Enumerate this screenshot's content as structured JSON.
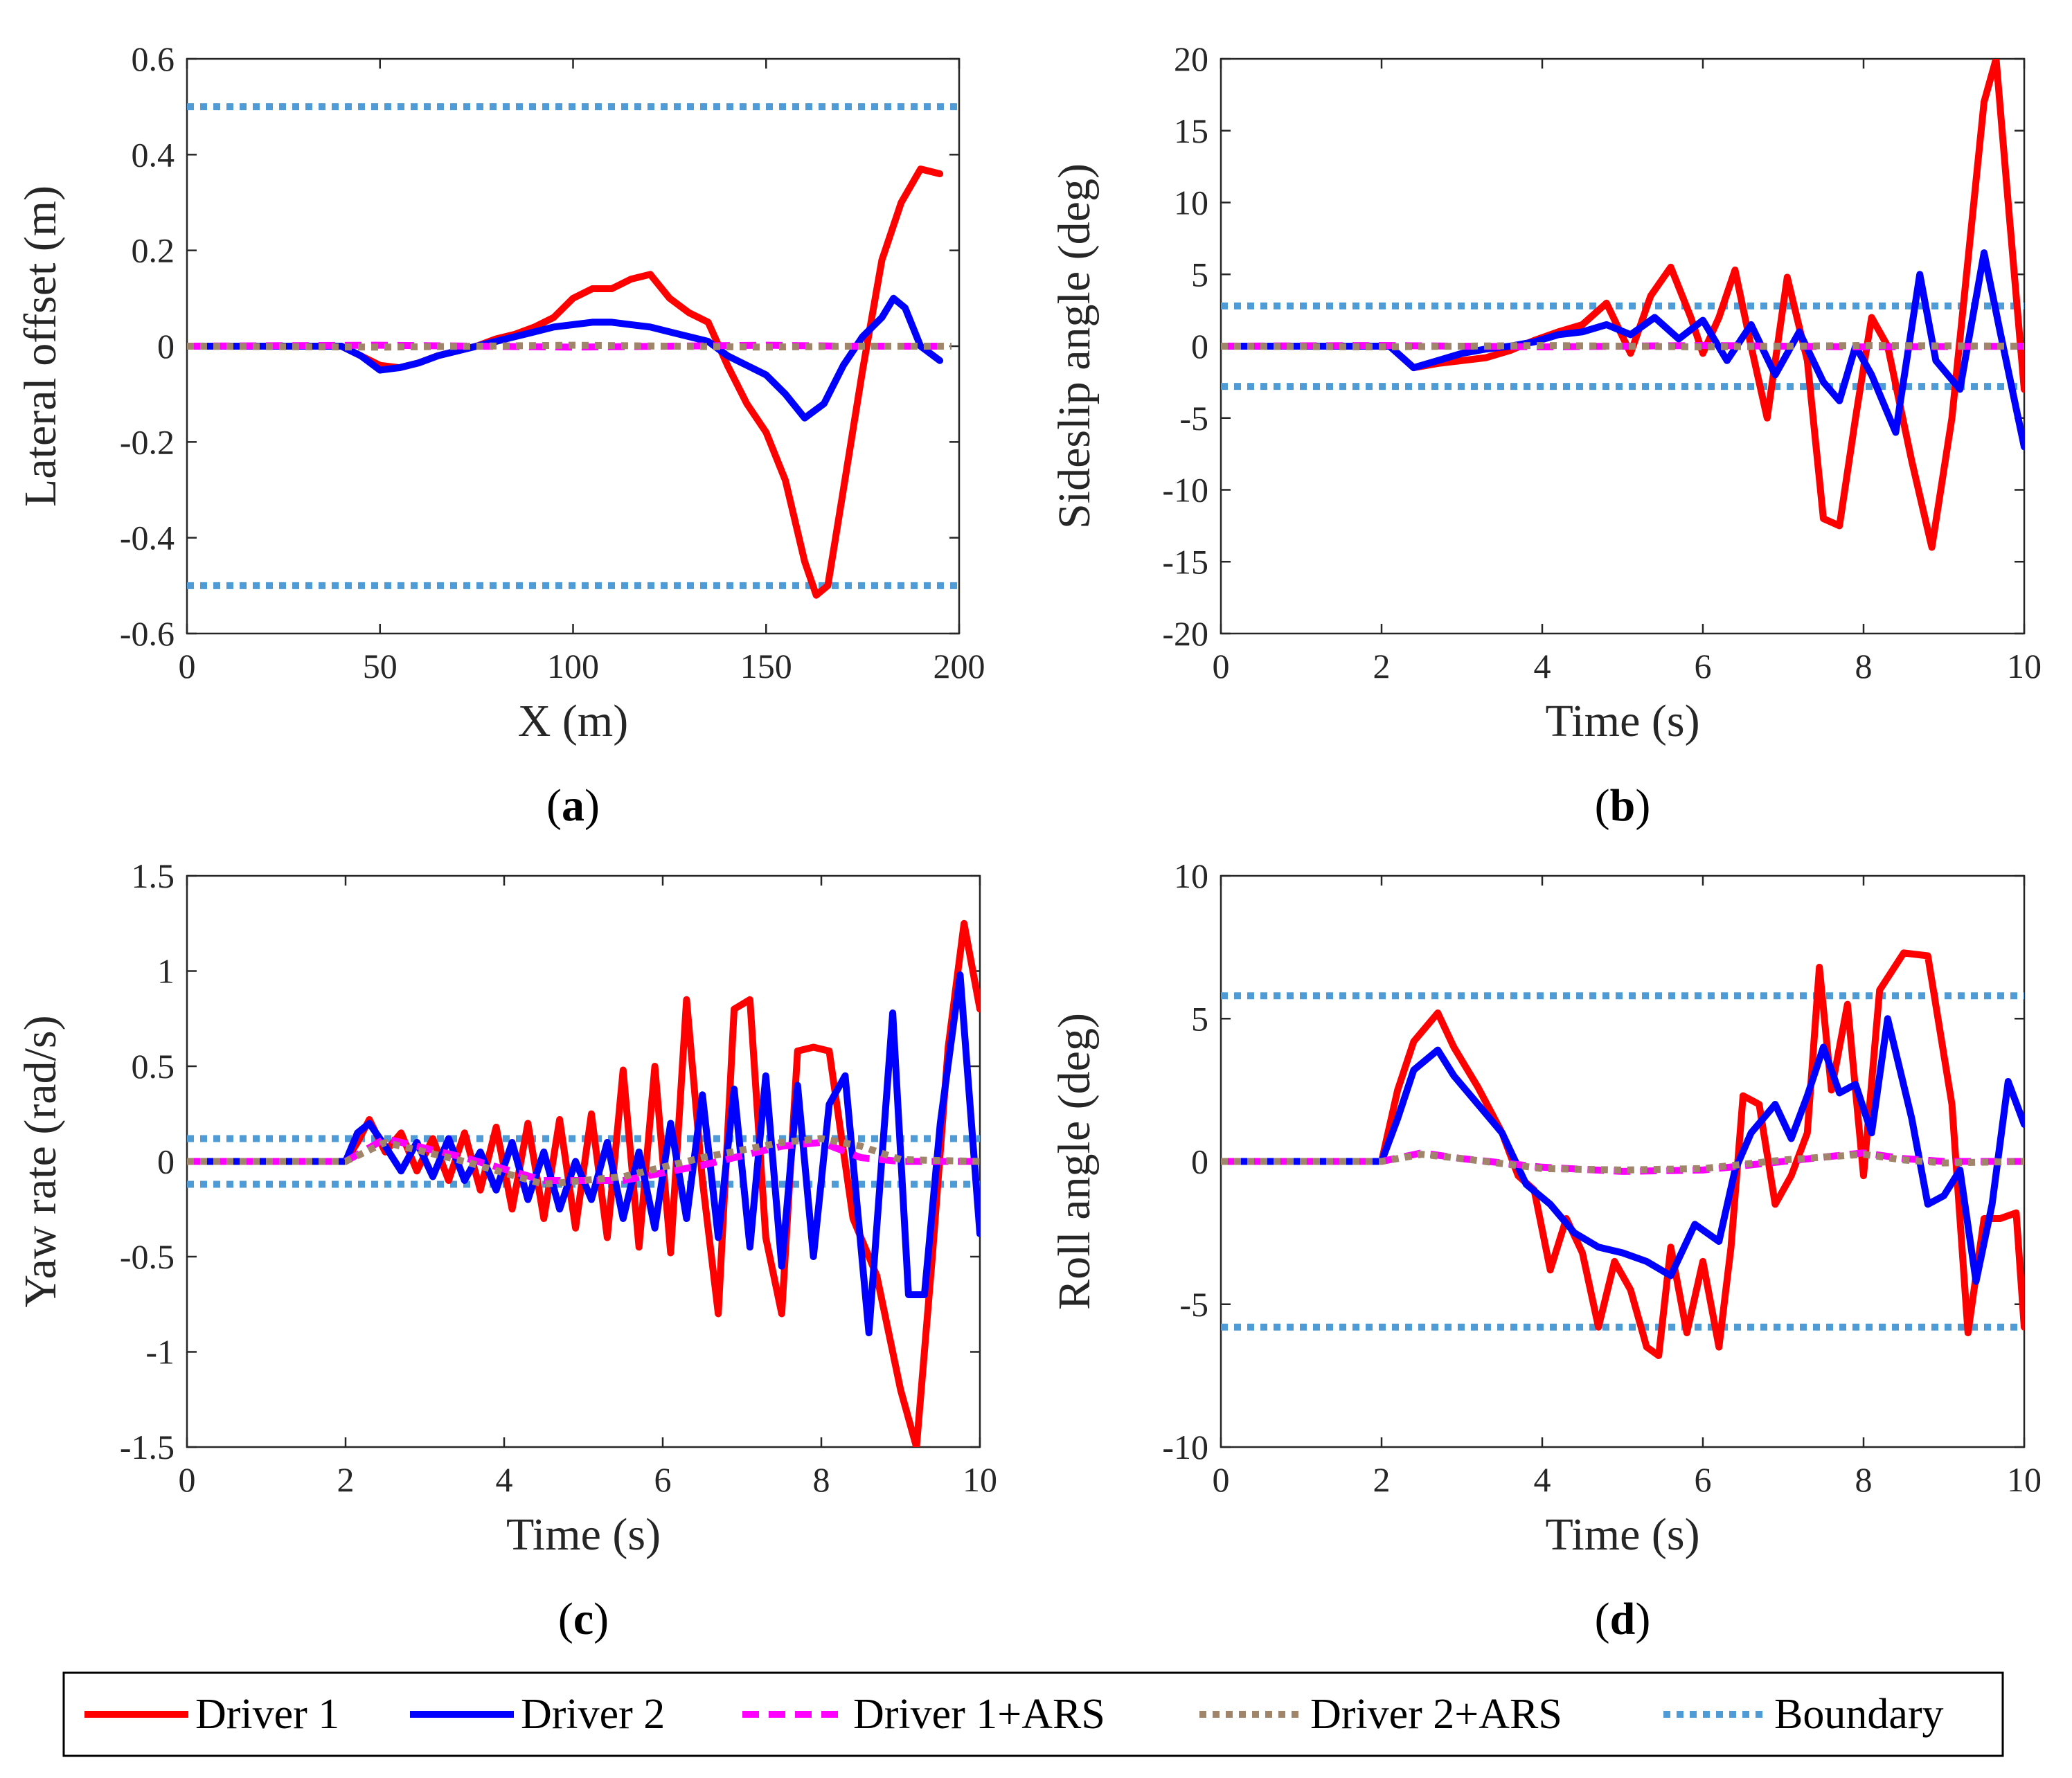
{
  "legend": [
    {
      "label": "Driver 1",
      "color": "#ff0000",
      "dash": "solid"
    },
    {
      "label": "Driver 2",
      "color": "#0000ff",
      "dash": "solid"
    },
    {
      "label": "Driver 1+ARS",
      "color": "#ff00ff",
      "dash": "dashed"
    },
    {
      "label": "Driver 2+ARS",
      "color": "#a0856a",
      "dash": "dotted"
    },
    {
      "label": "Boundary",
      "color": "#4f9bd6",
      "dash": "dotted"
    }
  ],
  "chart_data": [
    {
      "id": "a",
      "panel_label": "a",
      "type": "line",
      "xlabel": "X (m)",
      "ylabel": "Lateral offset (m)",
      "xlim": [
        0,
        200
      ],
      "ylim": [
        -0.6,
        0.6
      ],
      "xticks": [
        0,
        50,
        100,
        150,
        200
      ],
      "yticks": [
        -0.6,
        -0.4,
        -0.2,
        0,
        0.2,
        0.4,
        0.6
      ],
      "ytick_labels": [
        "-0.6",
        "-0.4",
        "-0.2",
        "0",
        "0.2",
        "0.4",
        "0.6"
      ],
      "boundary": [
        0.5,
        -0.5
      ],
      "series": [
        {
          "name": "Driver 1",
          "x": [
            0,
            40,
            45,
            50,
            55,
            60,
            65,
            70,
            75,
            80,
            85,
            90,
            95,
            100,
            105,
            110,
            115,
            120,
            125,
            130,
            135,
            140,
            145,
            150,
            155,
            160,
            163,
            166,
            170,
            175,
            180,
            185,
            190,
            195
          ],
          "y": [
            0,
            0,
            -0.02,
            -0.04,
            -0.045,
            -0.035,
            -0.02,
            -0.01,
            0,
            0.015,
            0.025,
            0.04,
            0.06,
            0.1,
            0.12,
            0.12,
            0.14,
            0.15,
            0.1,
            0.07,
            0.05,
            -0.04,
            -0.12,
            -0.18,
            -0.28,
            -0.45,
            -0.52,
            -0.5,
            -0.3,
            -0.05,
            0.18,
            0.3,
            0.37,
            0.36
          ]
        },
        {
          "name": "Driver 2",
          "x": [
            0,
            40,
            45,
            50,
            55,
            60,
            65,
            70,
            75,
            80,
            85,
            90,
            95,
            100,
            105,
            110,
            115,
            120,
            125,
            130,
            135,
            140,
            145,
            150,
            155,
            160,
            165,
            170,
            175,
            180,
            183,
            186,
            190,
            195
          ],
          "y": [
            0,
            0,
            -0.02,
            -0.05,
            -0.045,
            -0.035,
            -0.02,
            -0.01,
            0,
            0.01,
            0.02,
            0.03,
            0.04,
            0.045,
            0.05,
            0.05,
            0.045,
            0.04,
            0.03,
            0.02,
            0.01,
            -0.02,
            -0.04,
            -0.06,
            -0.1,
            -0.15,
            -0.12,
            -0.04,
            0.02,
            0.06,
            0.1,
            0.08,
            0.0,
            -0.03
          ]
        },
        {
          "name": "Driver 1+ARS",
          "x": [
            0,
            50,
            100,
            150,
            170,
            198
          ],
          "y": [
            0,
            0.002,
            -0.002,
            0.002,
            0,
            0
          ]
        },
        {
          "name": "Driver 2+ARS",
          "x": [
            0,
            50,
            100,
            150,
            170,
            198
          ],
          "y": [
            0,
            -0.002,
            0.002,
            -0.002,
            0,
            0
          ]
        }
      ]
    },
    {
      "id": "b",
      "panel_label": "b",
      "type": "line",
      "xlabel": "Time (s)",
      "ylabel": "Sideslip angle (deg)",
      "xlim": [
        0,
        10
      ],
      "ylim": [
        -20,
        20
      ],
      "xticks": [
        0,
        2,
        4,
        6,
        8,
        10
      ],
      "yticks": [
        -20,
        -15,
        -10,
        -5,
        0,
        5,
        10,
        15,
        20
      ],
      "ytick_labels": [
        "-20",
        "-15",
        "-10",
        "-5",
        "0",
        "5",
        "10",
        "15",
        "20"
      ],
      "boundary": [
        2.8,
        -2.8
      ],
      "series": [
        {
          "name": "Driver 1",
          "x": [
            0,
            2.1,
            2.4,
            2.7,
            3.0,
            3.3,
            3.6,
            3.9,
            4.2,
            4.5,
            4.8,
            5.1,
            5.35,
            5.6,
            5.85,
            6.0,
            6.2,
            6.4,
            6.6,
            6.8,
            7.05,
            7.3,
            7.5,
            7.7,
            7.9,
            8.1,
            8.3,
            8.6,
            8.85,
            9.1,
            9.3,
            9.5,
            9.65,
            9.8,
            10
          ],
          "y": [
            0,
            0,
            -1.5,
            -1.2,
            -1,
            -0.8,
            -0.3,
            0.4,
            1,
            1.5,
            3,
            -0.5,
            3.5,
            5.5,
            2,
            -0.5,
            2,
            5.3,
            0,
            -5,
            4.8,
            -1,
            -12,
            -12.5,
            -5,
            2,
            0,
            -8,
            -14,
            -5,
            6,
            17,
            20,
            10,
            -3
          ]
        },
        {
          "name": "Driver 2",
          "x": [
            0,
            2.1,
            2.4,
            2.7,
            3.0,
            3.3,
            3.6,
            3.9,
            4.2,
            4.5,
            4.8,
            5.1,
            5.4,
            5.7,
            6.0,
            6.3,
            6.6,
            6.9,
            7.2,
            7.5,
            7.7,
            7.9,
            8.1,
            8.4,
            8.7,
            8.9,
            9.2,
            9.5,
            9.7,
            10
          ],
          "y": [
            0,
            0,
            -1.5,
            -1,
            -0.5,
            -0.2,
            0,
            0.3,
            0.8,
            1,
            1.5,
            0.8,
            2,
            0.5,
            1.8,
            -1,
            1.5,
            -2,
            1,
            -2.5,
            -3.8,
            0,
            -2,
            -6,
            5,
            -1,
            -3,
            6.5,
            1,
            -7
          ]
        },
        {
          "name": "Driver 1+ARS",
          "x": [
            0,
            2,
            4,
            6,
            8,
            10
          ],
          "y": [
            0,
            0.05,
            -0.05,
            0.05,
            -0.05,
            0
          ]
        },
        {
          "name": "Driver 2+ARS",
          "x": [
            0,
            2,
            4,
            6,
            8,
            10
          ],
          "y": [
            0,
            -0.05,
            0.05,
            -0.05,
            0.05,
            0
          ]
        }
      ]
    },
    {
      "id": "c",
      "panel_label": "c",
      "type": "line",
      "xlabel": "Time (s)",
      "ylabel": "Yaw rate (rad/s)",
      "xlim": [
        0,
        10
      ],
      "ylim": [
        -1.5,
        1.5
      ],
      "xticks": [
        0,
        2,
        4,
        6,
        8,
        10
      ],
      "yticks": [
        -1.5,
        -1,
        -0.5,
        0,
        0.5,
        1,
        1.5
      ],
      "ytick_labels": [
        "-1.5",
        "-1",
        "-0.5",
        "0",
        "0.5",
        "1",
        "1.5"
      ],
      "boundary": [
        0.12,
        -0.12
      ],
      "series": [
        {
          "name": "Driver 1",
          "x": [
            0,
            2.0,
            2.15,
            2.3,
            2.5,
            2.7,
            2.9,
            3.1,
            3.3,
            3.5,
            3.7,
            3.9,
            4.1,
            4.3,
            4.5,
            4.7,
            4.9,
            5.1,
            5.3,
            5.5,
            5.7,
            5.9,
            6.1,
            6.3,
            6.5,
            6.7,
            6.9,
            7.1,
            7.3,
            7.5,
            7.7,
            7.9,
            8.1,
            8.4,
            8.7,
            9.0,
            9.2,
            9.4,
            9.6,
            9.8,
            10
          ],
          "y": [
            0,
            0,
            0.1,
            0.22,
            0.05,
            0.15,
            -0.05,
            0.12,
            -0.1,
            0.15,
            -0.15,
            0.18,
            -0.25,
            0.2,
            -0.3,
            0.22,
            -0.35,
            0.25,
            -0.4,
            0.48,
            -0.45,
            0.5,
            -0.48,
            0.85,
            -0.1,
            -0.8,
            0.8,
            0.85,
            -0.4,
            -0.8,
            0.58,
            0.6,
            0.58,
            -0.3,
            -0.6,
            -1.2,
            -1.5,
            -0.5,
            0.6,
            1.25,
            0.8
          ]
        },
        {
          "name": "Driver 2",
          "x": [
            0,
            2.0,
            2.15,
            2.3,
            2.5,
            2.7,
            2.9,
            3.1,
            3.3,
            3.5,
            3.7,
            3.9,
            4.1,
            4.3,
            4.5,
            4.7,
            4.9,
            5.1,
            5.3,
            5.5,
            5.7,
            5.9,
            6.1,
            6.3,
            6.5,
            6.7,
            6.9,
            7.1,
            7.3,
            7.5,
            7.7,
            7.9,
            8.1,
            8.3,
            8.6,
            8.9,
            9.1,
            9.3,
            9.5,
            9.75,
            10
          ],
          "y": [
            0,
            0,
            0.15,
            0.2,
            0.08,
            -0.05,
            0.1,
            -0.08,
            0.12,
            -0.1,
            0.05,
            -0.15,
            0.1,
            -0.2,
            0.05,
            -0.25,
            0,
            -0.2,
            0.1,
            -0.3,
            0.05,
            -0.35,
            0.2,
            -0.3,
            0.35,
            -0.4,
            0.38,
            -0.45,
            0.45,
            -0.55,
            0.4,
            -0.5,
            0.3,
            0.45,
            -0.9,
            0.78,
            -0.7,
            -0.7,
            0.2,
            0.98,
            -0.38
          ]
        },
        {
          "name": "Driver 1+ARS",
          "x": [
            0,
            2.0,
            2.5,
            3.5,
            4.5,
            5.5,
            6.5,
            7.5,
            8.0,
            8.5,
            9.0,
            10
          ],
          "y": [
            0,
            0,
            0.12,
            0.02,
            -0.1,
            -0.1,
            -0.02,
            0.08,
            0.1,
            0.02,
            0,
            0
          ]
        },
        {
          "name": "Driver 2+ARS",
          "x": [
            0,
            2.0,
            2.5,
            3.5,
            4.5,
            5.5,
            6.5,
            7.5,
            8.0,
            8.5,
            9.0,
            10
          ],
          "y": [
            0,
            0,
            0.1,
            0,
            -0.12,
            -0.08,
            0.02,
            0.1,
            0.12,
            0.08,
            0.01,
            0
          ]
        }
      ]
    },
    {
      "id": "d",
      "panel_label": "d",
      "type": "line",
      "xlabel": "Time (s)",
      "ylabel": "Roll angle (deg)",
      "xlim": [
        0,
        10
      ],
      "ylim": [
        -10,
        10
      ],
      "xticks": [
        0,
        2,
        4,
        6,
        8,
        10
      ],
      "yticks": [
        -10,
        -5,
        0,
        5,
        10
      ],
      "ytick_labels": [
        "-10",
        "-5",
        "0",
        "5",
        "10"
      ],
      "boundary": [
        5.8,
        -5.8
      ],
      "series": [
        {
          "name": "Driver 1",
          "x": [
            0,
            2.0,
            2.2,
            2.4,
            2.7,
            2.9,
            3.2,
            3.5,
            3.7,
            3.9,
            4.1,
            4.3,
            4.5,
            4.7,
            4.9,
            5.1,
            5.3,
            5.45,
            5.6,
            5.8,
            6.0,
            6.2,
            6.35,
            6.5,
            6.7,
            6.9,
            7.1,
            7.3,
            7.45,
            7.6,
            7.8,
            8.0,
            8.2,
            8.5,
            8.8,
            9.1,
            9.3,
            9.5,
            9.7,
            9.9,
            10
          ],
          "y": [
            0,
            0,
            2.5,
            4.2,
            5.2,
            4,
            2.6,
            1,
            -0.5,
            -1,
            -3.8,
            -2,
            -3.2,
            -5.8,
            -3.5,
            -4.5,
            -6.5,
            -6.8,
            -3,
            -6,
            -3.5,
            -6.5,
            -3,
            2.3,
            2,
            -1.5,
            -0.5,
            1,
            6.8,
            2.5,
            5.5,
            -0.5,
            6,
            7.3,
            7.2,
            2,
            -6,
            -2,
            -2,
            -1.8,
            -5.8
          ]
        },
        {
          "name": "Driver 2",
          "x": [
            0,
            2.0,
            2.2,
            2.4,
            2.7,
            2.9,
            3.2,
            3.5,
            3.8,
            4.1,
            4.4,
            4.7,
            5.0,
            5.3,
            5.6,
            5.9,
            6.2,
            6.4,
            6.6,
            6.9,
            7.1,
            7.3,
            7.5,
            7.7,
            7.9,
            8.1,
            8.3,
            8.6,
            8.8,
            9.0,
            9.2,
            9.4,
            9.6,
            9.8,
            10
          ],
          "y": [
            0,
            0,
            1.5,
            3.2,
            3.9,
            3,
            2,
            1,
            -0.8,
            -1.5,
            -2.5,
            -3,
            -3.2,
            -3.5,
            -4,
            -2.2,
            -2.8,
            -0.3,
            1,
            2,
            0.8,
            2.3,
            4,
            2.4,
            2.7,
            1,
            5,
            1.5,
            -1.5,
            -1.2,
            -0.3,
            -4.2,
            -1.5,
            2.8,
            1.3
          ]
        },
        {
          "name": "Driver 1+ARS",
          "x": [
            0,
            2.0,
            2.5,
            3.0,
            4.0,
            5.0,
            6.0,
            7.0,
            8.0,
            8.5,
            9.0,
            10
          ],
          "y": [
            0,
            0,
            0.3,
            0.1,
            -0.2,
            -0.35,
            -0.3,
            0,
            0.3,
            0.1,
            0,
            0
          ]
        },
        {
          "name": "Driver 2+ARS",
          "x": [
            0,
            2.0,
            2.5,
            3.0,
            4.0,
            5.0,
            6.0,
            7.0,
            8.0,
            8.5,
            9.0,
            10
          ],
          "y": [
            0,
            0,
            0.25,
            0.1,
            -0.25,
            -0.3,
            -0.25,
            0.05,
            0.25,
            0.05,
            -0.05,
            0
          ]
        }
      ]
    }
  ]
}
